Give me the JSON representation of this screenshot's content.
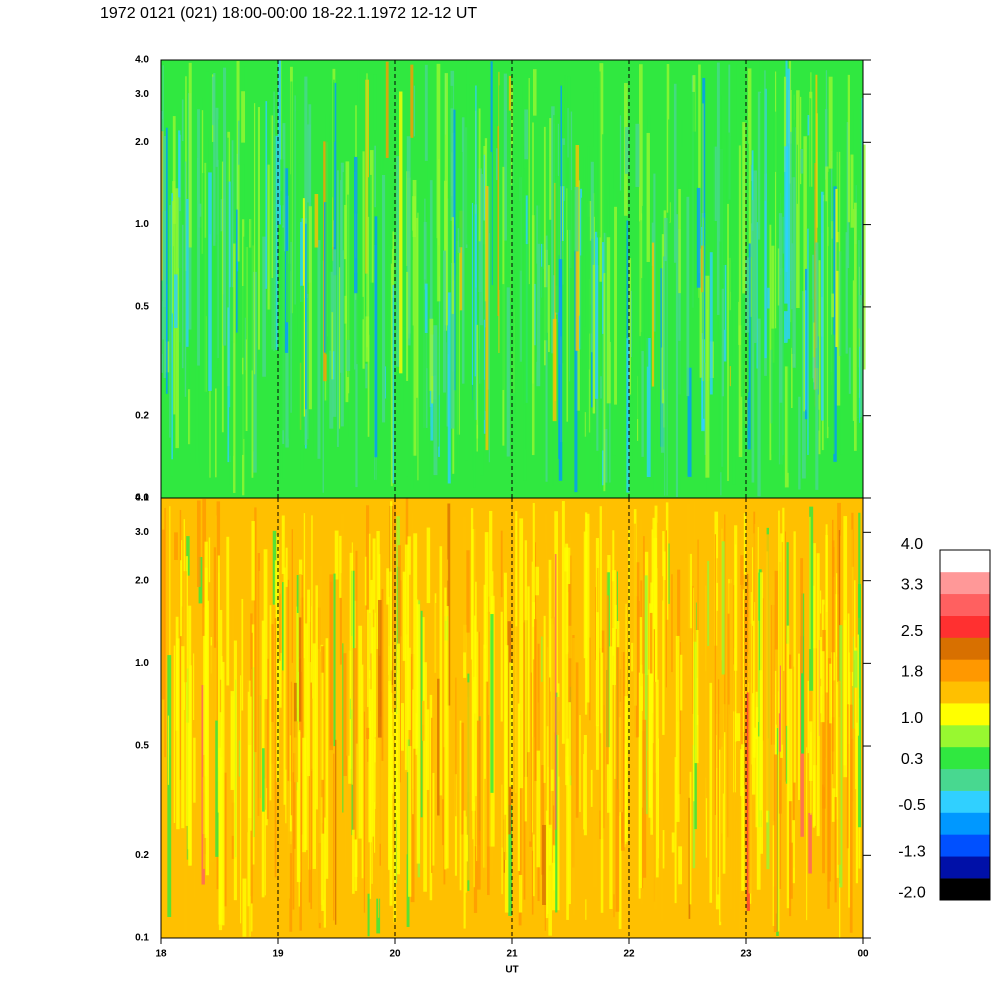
{
  "chart_data": {
    "type": "heatmap",
    "title": "1972 0121 (021) 18:00-00:00 18-22.1.1972  12-12 UT",
    "xlabel": "UT",
    "xlim": [
      18,
      24
    ],
    "xticks": [
      18,
      19,
      20,
      21,
      22,
      23,
      {
        "value": 24,
        "label": "00"
      }
    ],
    "ylim": [
      0.1,
      4
    ],
    "log_y": true,
    "yticks": [
      0.1,
      0.2,
      0.5,
      {
        "value": 1,
        "label": "1.0"
      },
      {
        "value": 2,
        "label": "2.0"
      },
      {
        "value": 3,
        "label": "3.0"
      },
      {
        "value": 4,
        "label": "4.0"
      }
    ],
    "grid": true,
    "colorbar": {
      "lim": [
        -2.12,
        3.91
      ],
      "ticks": [
        {
          "value": -2,
          "label": "-2.0"
        },
        -1.3,
        -0.5,
        0.3,
        {
          "value": 1,
          "label": "1.0"
        },
        1.8,
        2.5,
        3.3,
        {
          "value": 4,
          "label": "4.0"
        }
      ],
      "colors": [
        "#000000",
        "#0010a8",
        "#0050ff",
        "#0098ff",
        "#30d0ff",
        "#48d890",
        "#30e840",
        "#98f830",
        "#ffff00",
        "#ffc000",
        "#ff9800",
        "#d87000",
        "#ff3030",
        "#ff6060",
        "#ff9898",
        "#ffffff"
      ]
    }
  }
}
